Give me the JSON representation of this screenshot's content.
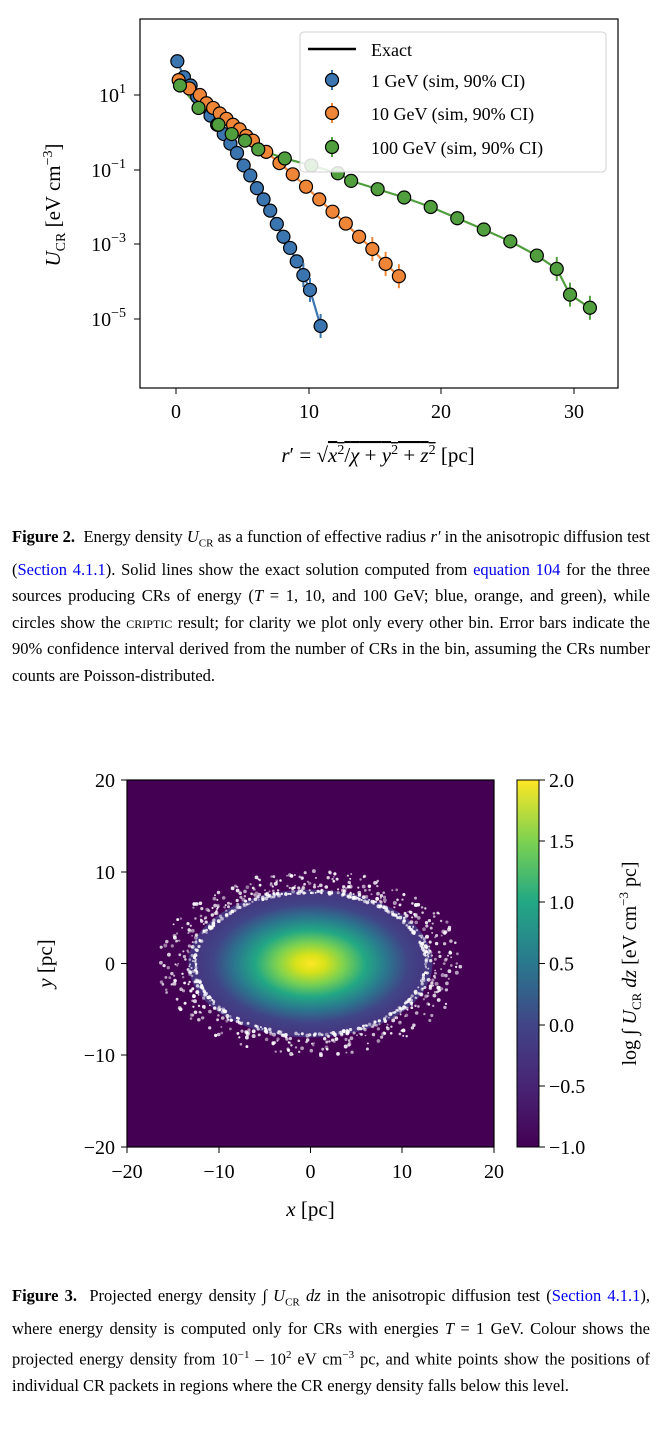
{
  "figure2": {
    "chart_data": {
      "type": "scatter",
      "ylabel": "U_CR [eV cm^-3]",
      "xlabel": "r' = sqrt(x^2/χ + y^2 + z^2) [pc]",
      "xlim": [
        -2.5,
        33
      ],
      "ylim": [
        1e-07,
        1000
      ],
      "yscale": "log",
      "xticks": [
        "0",
        "10",
        "20",
        "30"
      ],
      "yticks": [
        "10^1",
        "10^-1",
        "10^-3",
        "10^-5"
      ],
      "legend_position": "top-right",
      "legend": [
        "Exact",
        "1 GeV (sim, 90% CI)",
        "10 GeV (sim, 90% CI)",
        "100 GeV (sim, 90% CI)"
      ],
      "colors": {
        "1 GeV": "#3b75af",
        "10 GeV": "#ef8536",
        "100 GeV": "#519e3e"
      },
      "series": [
        {
          "name": "1 GeV (sim, 90% CI)",
          "x": [
            0.1,
            0.6,
            1.1,
            1.6,
            2.1,
            2.6,
            3.1,
            3.6,
            4.1,
            4.6,
            5.1,
            5.6,
            6.1,
            6.6,
            7.1,
            7.6,
            8.1,
            8.6,
            9.1,
            9.6,
            10.1,
            10.9
          ],
          "y": [
            80,
            30,
            18,
            9,
            5,
            2.8,
            1.6,
            0.9,
            0.5,
            0.28,
            0.13,
            0.07,
            0.032,
            0.016,
            0.008,
            0.0035,
            0.0016,
            0.0008,
            0.00035,
            0.00015,
            6e-05,
            6.5e-06
          ]
        },
        {
          "name": "10 GeV (sim, 90% CI)",
          "x": [
            0.2,
            1.0,
            1.8,
            2.3,
            2.8,
            3.3,
            3.8,
            4.3,
            4.8,
            5.3,
            5.8,
            6.8,
            7.8,
            8.8,
            9.8,
            10.8,
            11.8,
            12.8,
            13.8,
            14.8,
            15.8,
            16.8
          ],
          "y": [
            25,
            15,
            10,
            6,
            4.5,
            3.2,
            2.3,
            1.6,
            1.2,
            0.8,
            0.6,
            0.3,
            0.15,
            0.075,
            0.035,
            0.016,
            0.0075,
            0.0036,
            0.0016,
            0.00075,
            0.0003,
            0.00014
          ]
        },
        {
          "name": "100 GeV (sim, 90% CI)",
          "x": [
            0.3,
            1.7,
            3.2,
            4.2,
            5.2,
            6.2,
            8.2,
            10.2,
            12.2,
            13.2,
            15.2,
            17.2,
            19.2,
            21.2,
            23.2,
            25.2,
            27.2,
            28.7,
            29.7,
            31.2
          ],
          "y": [
            18,
            4.5,
            1.6,
            0.9,
            0.6,
            0.35,
            0.2,
            0.13,
            0.08,
            0.05,
            0.03,
            0.018,
            0.01,
            0.005,
            0.0025,
            0.0012,
            0.0005,
            0.00022,
            4.5e-05,
            2e-05
          ]
        }
      ]
    },
    "caption_label": "Figure 2.",
    "caption_body": "Energy density U_CR as a function of effective radius r′ in the anisotropic diffusion test (Section 4.1.1). Solid lines show the exact solution computed from equation 104 for the three sources producing CRs of energy (T = 1, 10, and 100 GeV; blue, orange, and green), while circles show the CRIPTIC result; for clarity we plot only every other bin. Error bars indicate the 90% confidence interval derived from the number of CRs in the bin, assuming the CRs number counts are Poisson-distributed."
  },
  "figure3": {
    "chart_data": {
      "type": "heatmap",
      "xlabel": "x [pc]",
      "ylabel": "y [pc]",
      "xlim": [
        -20,
        20
      ],
      "ylim": [
        -20,
        20
      ],
      "xticks": [
        "−20",
        "−10",
        "0",
        "10",
        "20"
      ],
      "yticks": [
        "20",
        "10",
        "0",
        "−10",
        "−20"
      ],
      "colorbar_label": "log ∫ U_CR dz [eV cm^-3 pc]",
      "colorbar_ticks": [
        "2.0",
        "1.5",
        "1.0",
        "0.5",
        "0.0",
        "−0.5",
        "−1.0"
      ],
      "clim": [
        -1.0,
        2.0
      ],
      "colormap": "viridis",
      "ellipse_semi_axes_pc": [
        13,
        8
      ],
      "peak_value": 2.0,
      "points_color": "#ffffff"
    },
    "caption_label": "Figure 3.",
    "caption_body": "Projected energy density ∫ U_CR dz in the anisotropic diffusion test (Section 4.1.1), where energy density is computed only for CRs with energies T = 1 GeV. Colour shows the projected energy density from 10^−1 – 10^2 eV cm^−3 pc, and white points show the positions of individual CR packets in regions where the CR energy density falls below this level."
  }
}
